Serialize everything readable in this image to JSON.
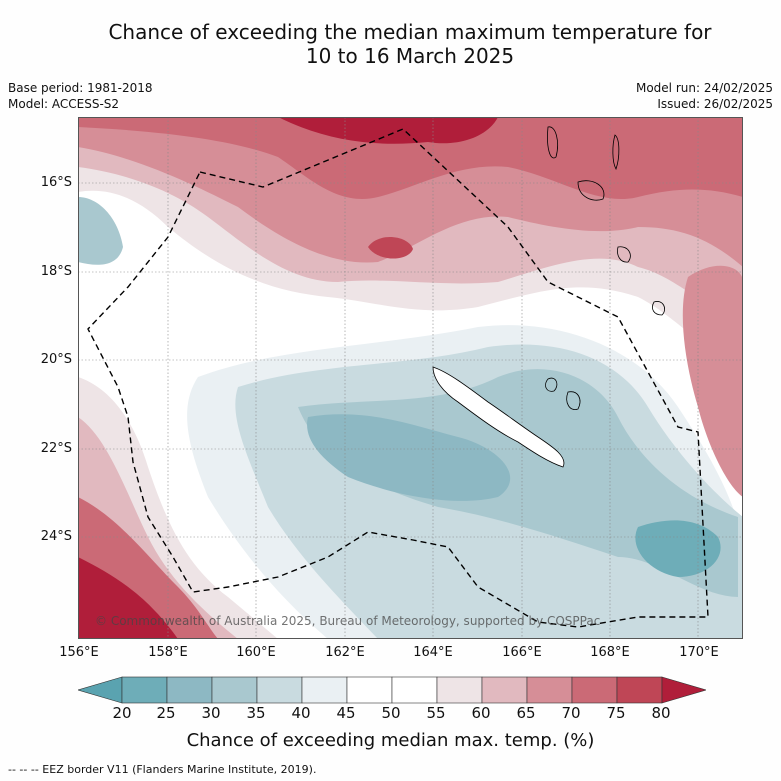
{
  "title_line1": "Chance of exceeding the median maximum temperature for",
  "title_line2": "10 to 16 March 2025",
  "meta_left": {
    "base_period": "Base period: 1981-2018",
    "model": "Model: ACCESS-S2"
  },
  "meta_right": {
    "model_run": "Model run: 24/02/2025",
    "issued": "Issued: 26/02/2025"
  },
  "lat_labels": [
    "16°S",
    "18°S",
    "20°S",
    "22°S",
    "24°S"
  ],
  "lon_labels": [
    "156°E",
    "158°E",
    "160°E",
    "162°E",
    "164°E",
    "166°E",
    "168°E",
    "170°E"
  ],
  "credit": "© Commonwealth of Australia 2025, Bureau of Meteorology, supported by COSPPac",
  "colorbar": {
    "ticks": [
      "20",
      "25",
      "30",
      "35",
      "40",
      "45",
      "50",
      "55",
      "60",
      "65",
      "70",
      "75",
      "80"
    ],
    "title": "Chance of exceeding median max. temp. (%)",
    "colors": [
      "#5aa3b0",
      "#6eadb8",
      "#8db8c3",
      "#a9c8cf",
      "#c9dbe0",
      "#eaf0f3",
      "#ffffff",
      "#ffffff",
      "#eee4e6",
      "#e1b9bf",
      "#d68e97",
      "#cb6a76",
      "#bf4656",
      "#b01e3a"
    ]
  },
  "footer": "--  --  -- EEZ border V11 (Flanders Marine Institute, 2019)."
}
